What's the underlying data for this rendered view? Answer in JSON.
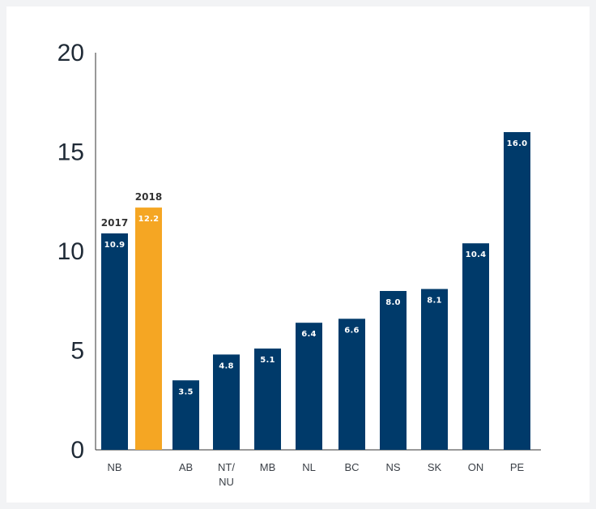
{
  "chart_data": {
    "type": "bar",
    "title": "",
    "xlabel": "",
    "ylabel": "",
    "ylim": [
      0,
      20
    ],
    "yticks": [
      0,
      5,
      10,
      15,
      20
    ],
    "grid": false,
    "legend": "none",
    "bars": [
      {
        "category": "NB",
        "value": 10.9,
        "label": "10.9",
        "year": "2017",
        "color": "#003a6a"
      },
      {
        "category": "",
        "value": 12.2,
        "label": "12.2",
        "year": "2018",
        "color": "#f5a623"
      },
      {
        "category": "AB",
        "value": 3.5,
        "label": "3.5",
        "color": "#003a6a"
      },
      {
        "category": "NT/\nNU",
        "value": 4.8,
        "label": "4.8",
        "color": "#003a6a"
      },
      {
        "category": "MB",
        "value": 5.1,
        "label": "5.1",
        "color": "#003a6a"
      },
      {
        "category": "NL",
        "value": 6.4,
        "label": "6.4",
        "color": "#003a6a"
      },
      {
        "category": "BC",
        "value": 6.6,
        "label": "6.6",
        "color": "#003a6a"
      },
      {
        "category": "NS",
        "value": 8.0,
        "label": "8.0",
        "color": "#003a6a"
      },
      {
        "category": "SK",
        "value": 8.1,
        "label": "8.1",
        "color": "#003a6a"
      },
      {
        "category": "ON",
        "value": 10.4,
        "label": "10.4",
        "color": "#003a6a"
      },
      {
        "category": "PE",
        "value": 16.0,
        "label": "16.0",
        "color": "#003a6a"
      }
    ]
  }
}
